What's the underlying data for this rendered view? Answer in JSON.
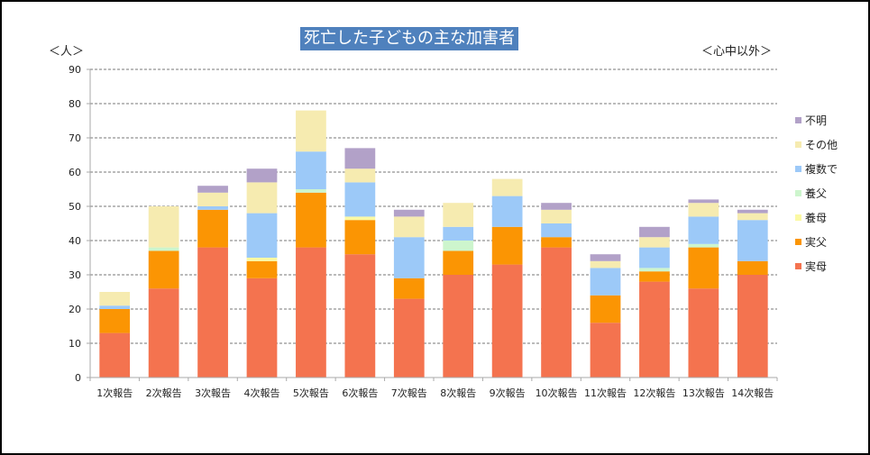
{
  "chart_data": {
    "type": "bar",
    "stacked": true,
    "title": "死亡した子どもの主な加害者",
    "ylabel": "＜人＞",
    "note": "＜心中以外＞",
    "xlabel": "",
    "ylim": [
      0,
      90
    ],
    "yticks": [
      0,
      10,
      20,
      30,
      40,
      50,
      60,
      70,
      80,
      90
    ],
    "grid": true,
    "legend_position": "right",
    "categories": [
      "1次報告",
      "2次報告",
      "3次報告",
      "4次報告",
      "5次報告",
      "6次報告",
      "7次報告",
      "8次報告",
      "9次報告",
      "10次報告",
      "11次報告",
      "12次報告",
      "13次報告",
      "14次報告"
    ],
    "series": [
      {
        "name": "実母",
        "color": "#f4734f",
        "values": [
          13,
          26,
          38,
          29,
          38,
          36,
          23,
          30,
          33,
          38,
          16,
          28,
          26,
          30
        ]
      },
      {
        "name": "実父",
        "color": "#fb9503",
        "values": [
          7,
          11,
          11,
          5,
          16,
          10,
          6,
          7,
          11,
          3,
          8,
          3,
          12,
          4
        ]
      },
      {
        "name": "養母",
        "color": "#fbf9a4",
        "values": [
          0,
          0,
          0,
          1,
          0,
          1,
          0,
          0,
          0,
          0,
          0,
          0,
          0,
          0
        ]
      },
      {
        "name": "養父",
        "color": "#cdf5cd",
        "values": [
          0,
          1,
          0,
          0,
          1,
          0,
          0,
          3,
          0,
          0,
          0,
          1,
          1,
          0
        ]
      },
      {
        "name": "複数で",
        "color": "#9cc9f8",
        "values": [
          1,
          0,
          1,
          13,
          11,
          10,
          12,
          4,
          9,
          4,
          8,
          6,
          8,
          12
        ]
      },
      {
        "name": "その他",
        "color": "#f6ebb0",
        "values": [
          4,
          12,
          4,
          9,
          12,
          4,
          6,
          7,
          5,
          4,
          2,
          3,
          4,
          2
        ]
      },
      {
        "name": "不明",
        "color": "#b2a1c8",
        "values": [
          0,
          0,
          2,
          4,
          0,
          6,
          2,
          0,
          0,
          2,
          2,
          3,
          1,
          1
        ]
      }
    ],
    "totals": [
      25,
      50,
      56,
      61,
      78,
      67,
      49,
      51,
      58,
      51,
      36,
      44,
      52,
      49
    ]
  }
}
